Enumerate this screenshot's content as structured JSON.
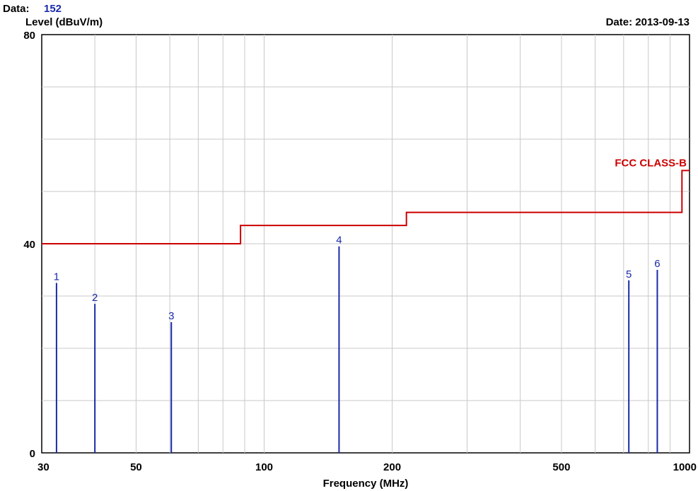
{
  "header": {
    "data_label": "Data:",
    "data_value": "152",
    "date_text": "Date: 2013-09-13"
  },
  "colors": {
    "limit_line": "#cc0000",
    "markers": "#1a2aa8",
    "grid": "#c8c8c8"
  },
  "chart_data": {
    "type": "line",
    "ylabel": "Level (dBuV/m)",
    "xlabel": "Frequency (MHz)",
    "x_scale": "log",
    "xlim": [
      30,
      1000
    ],
    "ylim": [
      0,
      80
    ],
    "x_ticks": [
      "30",
      "50",
      "100",
      "200",
      "500",
      "1000"
    ],
    "x_tick_values": [
      30,
      50,
      100,
      200,
      500,
      1000
    ],
    "y_ticks": [
      "0",
      "40",
      "80"
    ],
    "y_tick_values": [
      0,
      40,
      80
    ],
    "grid": true,
    "limit_line": {
      "name": "FCC CLASS-B",
      "x": [
        30,
        88,
        88,
        216,
        216,
        960,
        960,
        1000
      ],
      "y": [
        40,
        40,
        43.5,
        43.5,
        46,
        46,
        54,
        54
      ]
    },
    "markers": [
      {
        "label": "1",
        "freq": 32.5,
        "level": 32.5
      },
      {
        "label": "2",
        "freq": 40.0,
        "level": 28.5
      },
      {
        "label": "3",
        "freq": 60.5,
        "level": 25.0
      },
      {
        "label": "4",
        "freq": 150.0,
        "level": 39.5
      },
      {
        "label": "5",
        "freq": 720.0,
        "level": 33.0
      },
      {
        "label": "6",
        "freq": 840.0,
        "level": 35.0
      }
    ]
  }
}
